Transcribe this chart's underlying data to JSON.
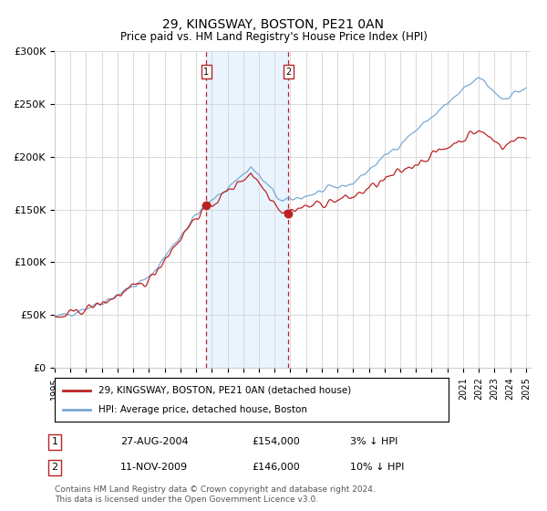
{
  "title": "29, KINGSWAY, BOSTON, PE21 0AN",
  "subtitle": "Price paid vs. HM Land Registry's House Price Index (HPI)",
  "x_start_year": 1995,
  "x_end_year": 2025,
  "y_min": 0,
  "y_max": 300000,
  "y_ticks": [
    0,
    50000,
    100000,
    150000,
    200000,
    250000,
    300000
  ],
  "y_tick_labels": [
    "£0",
    "£50K",
    "£100K",
    "£150K",
    "£200K",
    "£250K",
    "£300K"
  ],
  "hpi_color": "#7aa8d4",
  "price_color": "#bb2222",
  "sale1_date": 2004.65,
  "sale1_price": 154000,
  "sale2_date": 2009.87,
  "sale2_price": 146000,
  "legend_price_label": "29, KINGSWAY, BOSTON, PE21 0AN (detached house)",
  "legend_hpi_label": "HPI: Average price, detached house, Boston",
  "sale1_label": "1",
  "sale2_label": "2",
  "sale1_display": "27-AUG-2004",
  "sale1_price_display": "£154,000",
  "sale1_hpi_display": "3% ↓ HPI",
  "sale2_display": "11-NOV-2009",
  "sale2_price_display": "£146,000",
  "sale2_hpi_display": "10% ↓ HPI",
  "footnote": "Contains HM Land Registry data © Crown copyright and database right 2024.\nThis data is licensed under the Open Government Licence v3.0.",
  "background_color": "#ffffff",
  "plot_bg_color": "#ffffff",
  "grid_color": "#cccccc",
  "shade_color": "#ddeeff"
}
